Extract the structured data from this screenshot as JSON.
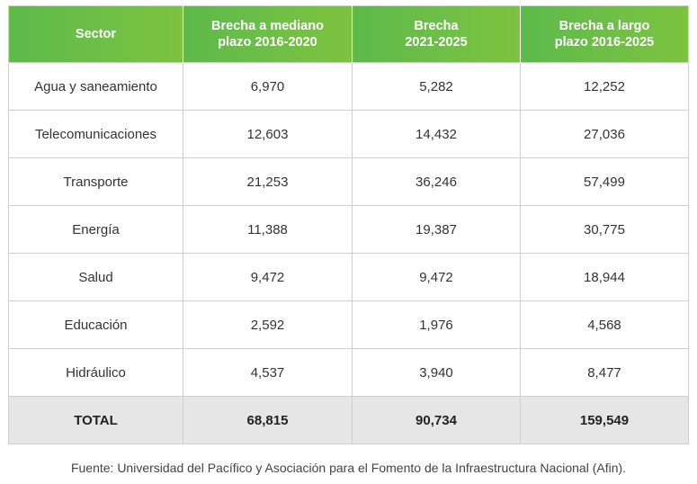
{
  "table": {
    "headers": [
      {
        "line1": "Sector",
        "line2": ""
      },
      {
        "line1": "Brecha a mediano",
        "line2": "plazo 2016-2020"
      },
      {
        "line1": "Brecha",
        "line2": "2021-2025"
      },
      {
        "line1": "Brecha a largo",
        "line2": "plazo 2016-2025"
      }
    ],
    "rows": [
      [
        "Agua y saneamiento",
        "6,970",
        "5,282",
        "12,252"
      ],
      [
        "Telecomunicaciones",
        "12,603",
        "14,432",
        "27,036"
      ],
      [
        "Transporte",
        "21,253",
        "36,246",
        "57,499"
      ],
      [
        "Energía",
        "11,388",
        "19,387",
        "30,775"
      ],
      [
        "Salud",
        "9,472",
        "9,472",
        "18,944"
      ],
      [
        "Educación",
        "2,592",
        "1,976",
        "4,568"
      ],
      [
        "Hidráulico",
        "4,537",
        "3,940",
        "8,477"
      ]
    ],
    "total": [
      "TOTAL",
      "68,815",
      "90,734",
      "159,549"
    ]
  },
  "source": "Fuente: Universidad del Pacífico y Asociación para el Fomento de la Infraestructura Nacional (Afin).",
  "colors": {
    "header_green_start": "#5db94a",
    "header_green_end": "#7cc33e",
    "total_row_bg": "#e6e6e6",
    "grid_line": "#cfcfcf"
  }
}
